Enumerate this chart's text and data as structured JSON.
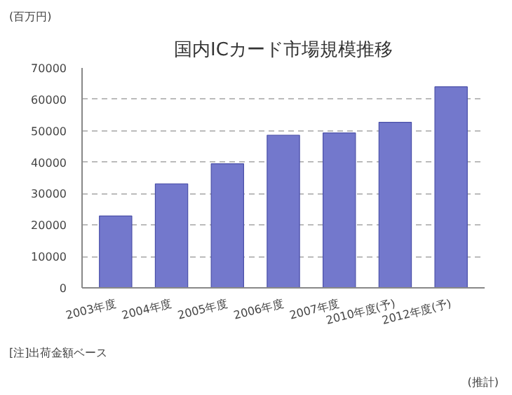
{
  "chart_data": {
    "type": "bar",
    "title": "国内ICカード市場規模推移",
    "ylabel": "(百万円)",
    "categories": [
      "2003年度",
      "2004年度",
      "2005年度",
      "2006年度",
      "2007年度",
      "2010年度(予)",
      "2012年度(予)"
    ],
    "values": [
      22900,
      33100,
      39500,
      48600,
      49300,
      52700,
      64000
    ],
    "color": "#7378cc",
    "ylim": [
      0,
      70000
    ],
    "yticks": [
      0,
      10000,
      20000,
      30000,
      40000,
      50000,
      60000,
      70000
    ],
    "grid": "y",
    "annotations": [
      "[注]出荷金額ベース",
      "(推計)"
    ]
  }
}
